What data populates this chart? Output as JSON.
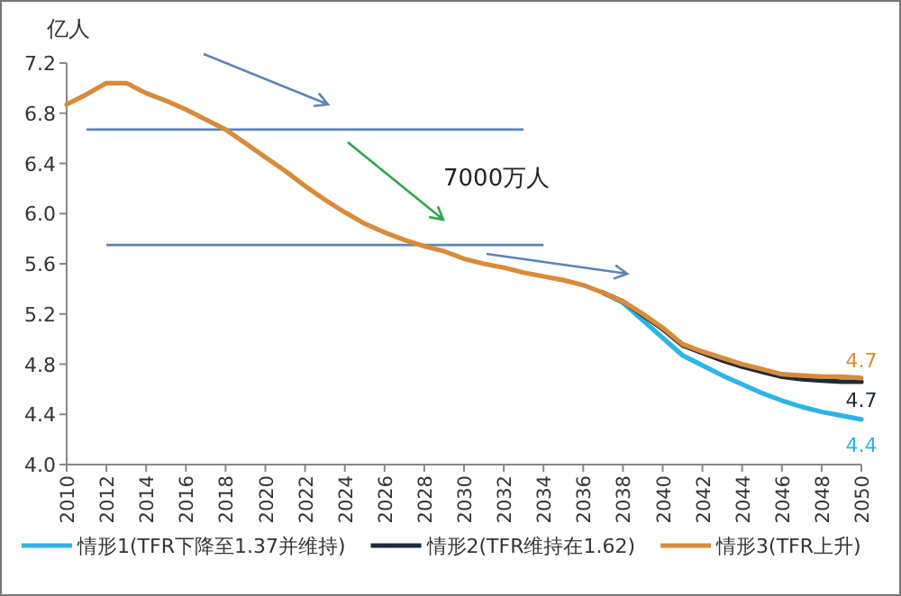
{
  "chart_data": {
    "type": "line",
    "ylabel": "亿人",
    "x": [
      2010,
      2011,
      2012,
      2013,
      2014,
      2015,
      2016,
      2017,
      2018,
      2019,
      2020,
      2021,
      2022,
      2023,
      2024,
      2025,
      2026,
      2027,
      2028,
      2029,
      2030,
      2031,
      2032,
      2033,
      2034,
      2035,
      2036,
      2037,
      2038,
      2039,
      2040,
      2041,
      2042,
      2043,
      2044,
      2045,
      2046,
      2047,
      2048,
      2049,
      2050
    ],
    "series": [
      {
        "name": "情形1(TFR下降至1.37并维持)",
        "color": "#2eb4e6",
        "values": [
          null,
          null,
          null,
          null,
          null,
          null,
          null,
          null,
          null,
          null,
          null,
          null,
          null,
          null,
          null,
          null,
          null,
          null,
          null,
          null,
          null,
          null,
          null,
          null,
          null,
          null,
          null,
          5.37,
          5.29,
          5.15,
          5.01,
          4.87,
          4.79,
          4.71,
          4.64,
          4.57,
          4.51,
          4.46,
          4.42,
          4.39,
          4.36
        ],
        "value_labels": [
          null,
          null,
          null,
          null,
          null,
          null,
          null,
          null,
          null,
          null,
          null,
          null,
          null,
          null,
          null,
          null,
          null,
          null,
          null,
          null,
          null,
          null,
          null,
          null,
          null,
          null,
          null,
          null,
          null,
          null,
          null,
          null,
          null,
          null,
          null,
          null,
          null,
          null,
          null,
          null,
          "4.4"
        ]
      },
      {
        "name": "情形2(TFR维持在1.62)",
        "color": "#1c2a3a",
        "values": [
          null,
          null,
          null,
          null,
          null,
          null,
          null,
          null,
          null,
          null,
          null,
          null,
          null,
          null,
          null,
          null,
          null,
          null,
          null,
          null,
          null,
          null,
          null,
          null,
          null,
          null,
          null,
          5.37,
          5.3,
          5.19,
          5.08,
          4.95,
          4.89,
          4.83,
          4.78,
          4.74,
          4.7,
          4.68,
          4.67,
          4.66,
          4.66
        ],
        "value_labels": [
          null,
          null,
          null,
          null,
          null,
          null,
          null,
          null,
          null,
          null,
          null,
          null,
          null,
          null,
          null,
          null,
          null,
          null,
          null,
          null,
          null,
          null,
          null,
          null,
          null,
          null,
          null,
          null,
          null,
          null,
          null,
          null,
          null,
          null,
          null,
          null,
          null,
          null,
          null,
          null,
          "4.7"
        ]
      },
      {
        "name": "情形3(TFR上升)",
        "color": "#d98b3a",
        "values": [
          6.87,
          6.95,
          7.04,
          7.04,
          6.96,
          6.9,
          6.83,
          6.75,
          6.67,
          6.56,
          6.45,
          6.34,
          6.22,
          6.11,
          6.01,
          5.92,
          5.85,
          5.79,
          5.74,
          5.7,
          5.64,
          5.6,
          5.57,
          5.53,
          5.5,
          5.47,
          5.43,
          5.37,
          5.3,
          5.2,
          5.09,
          4.96,
          4.9,
          4.85,
          4.8,
          4.76,
          4.72,
          4.71,
          4.7,
          4.7,
          4.69
        ],
        "value_labels": [
          null,
          null,
          null,
          null,
          null,
          null,
          null,
          null,
          null,
          null,
          null,
          null,
          null,
          null,
          null,
          null,
          null,
          null,
          null,
          null,
          null,
          null,
          null,
          null,
          null,
          null,
          null,
          null,
          null,
          null,
          null,
          null,
          null,
          null,
          null,
          null,
          null,
          null,
          null,
          null,
          "4.7"
        ]
      }
    ],
    "xlim": [
      2010,
      2050
    ],
    "xticks": [
      2010,
      2012,
      2014,
      2016,
      2018,
      2020,
      2022,
      2024,
      2026,
      2028,
      2030,
      2032,
      2034,
      2036,
      2038,
      2040,
      2042,
      2044,
      2046,
      2048,
      2050
    ],
    "ylim": [
      4.0,
      7.2
    ],
    "yticks": [
      {
        "value": 4.0,
        "label": "4.0"
      },
      4.4,
      4.8,
      5.2,
      5.6,
      {
        "value": 6.0,
        "label": "6.0"
      },
      6.4,
      6.8,
      7.2
    ],
    "ref_lines": [
      {
        "axis": "y",
        "value": 6.67,
        "color": "#5b84b4"
      },
      {
        "axis": "y",
        "value": 5.75,
        "color": "#5b84b4"
      }
    ],
    "annotations": [
      "7000万人"
    ],
    "legend": "bottom",
    "marker": "none",
    "line_style": "solid",
    "grid": false
  }
}
